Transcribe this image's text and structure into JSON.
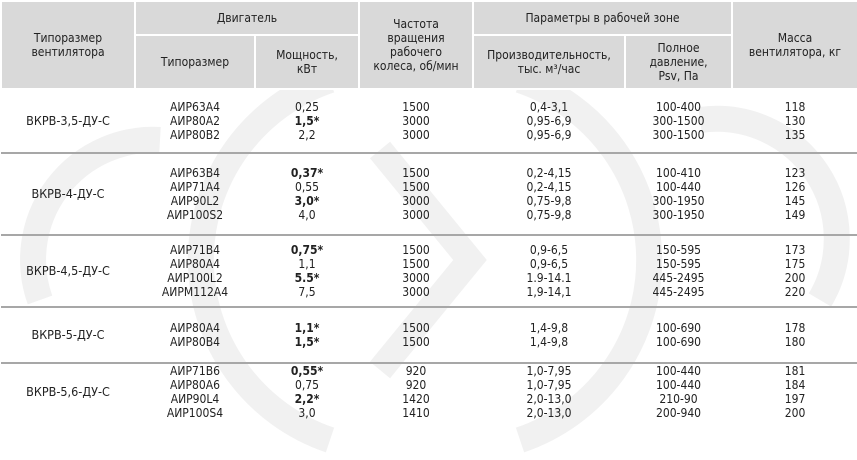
{
  "header": {
    "fan_size": "Типоразмер вентилятора",
    "motor": "Двигатель",
    "motor_type": "Типоразмер",
    "motor_power": "Мощность, кВт",
    "speed": "Частота вращения рабочего колеса, об/мин",
    "params": "Параметры в рабочей зоне",
    "capacity": "Производительность, тыс. м³/час",
    "pressure": "Полное давление, Psv, Па",
    "mass": "Масса вентилятора, кг"
  },
  "groups": [
    {
      "model": "ВКРВ-3,5-ДУ-С",
      "rows": [
        {
          "motor": "АИР63А4",
          "power": "0,25",
          "bold": false,
          "speed": "1500",
          "capacity": "0,4-3,1",
          "pressure": "100-400",
          "mass": "118"
        },
        {
          "motor": "АИР80А2",
          "power": "1,5*",
          "bold": true,
          "speed": "3000",
          "capacity": "0,95-6,9",
          "pressure": "300-1500",
          "mass": "130"
        },
        {
          "motor": "АИР80В2",
          "power": "2,2",
          "bold": false,
          "speed": "3000",
          "capacity": "0,95-6,9",
          "pressure": "300-1500",
          "mass": "135"
        }
      ]
    },
    {
      "model": "ВКРВ-4-ДУ-С",
      "rows": [
        {
          "motor": "АИР63В4",
          "power": "0,37*",
          "bold": true,
          "speed": "1500",
          "capacity": "0,2-4,15",
          "pressure": "100-410",
          "mass": "123"
        },
        {
          "motor": "АИР71А4",
          "power": "0,55",
          "bold": false,
          "speed": "1500",
          "capacity": "0,2-4,15",
          "pressure": "100-440",
          "mass": "126"
        },
        {
          "motor": "АИР90L2",
          "power": "3,0*",
          "bold": true,
          "speed": "3000",
          "capacity": "0,75-9,8",
          "pressure": "300-1950",
          "mass": "145"
        },
        {
          "motor": "АИР100S2",
          "power": "4,0",
          "bold": false,
          "speed": "3000",
          "capacity": "0,75-9,8",
          "pressure": "300-1950",
          "mass": "149"
        }
      ]
    },
    {
      "model": "ВКРВ-4,5-ДУ-С",
      "rows": [
        {
          "motor": "АИР71В4",
          "power": "0,75*",
          "bold": true,
          "speed": "1500",
          "capacity": "0,9-6,5",
          "pressure": "150-595",
          "mass": "173"
        },
        {
          "motor": "АИР80А4",
          "power": "1,1",
          "bold": false,
          "speed": "1500",
          "capacity": "0,9-6,5",
          "pressure": "150-595",
          "mass": "175"
        },
        {
          "motor": "АИР100L2",
          "power": "5.5*",
          "bold": true,
          "speed": "3000",
          "capacity": "1.9-14.1",
          "pressure": "445-2495",
          "mass": "200"
        },
        {
          "motor": "АИРМ112А4",
          "power": "7,5",
          "bold": false,
          "speed": "3000",
          "capacity": "1,9-14,1",
          "pressure": "445-2495",
          "mass": "220"
        }
      ]
    },
    {
      "model": "ВКРВ-5-ДУ-С",
      "rows": [
        {
          "motor": "АИР80А4",
          "power": "1,1*",
          "bold": true,
          "speed": "1500",
          "capacity": "1,4-9,8",
          "pressure": "100-690",
          "mass": "178"
        },
        {
          "motor": "АИР80В4",
          "power": "1,5*",
          "bold": true,
          "speed": "1500",
          "capacity": "1,4-9,8",
          "pressure": "100-690",
          "mass": "180"
        }
      ]
    },
    {
      "model": "ВКРВ-5,6-ДУ-С",
      "rows": [
        {
          "motor": "АИР71В6",
          "power": "0,55*",
          "bold": true,
          "speed": "920",
          "capacity": "1,0-7,95",
          "pressure": "100-440",
          "mass": "181"
        },
        {
          "motor": "АИР80А6",
          "power": "0,75",
          "bold": false,
          "speed": "920",
          "capacity": "1,0-7,95",
          "pressure": "100-440",
          "mass": "184"
        },
        {
          "motor": "АИР90L4",
          "power": "2,2*",
          "bold": true,
          "speed": "1420",
          "capacity": "2,0-13,0",
          "pressure": "210-90",
          "mass": "197"
        },
        {
          "motor": "АИР100S4",
          "power": "3,0",
          "bold": false,
          "speed": "1410",
          "capacity": "2,0-13,0",
          "pressure": "200-940",
          "mass": "200"
        }
      ]
    }
  ]
}
